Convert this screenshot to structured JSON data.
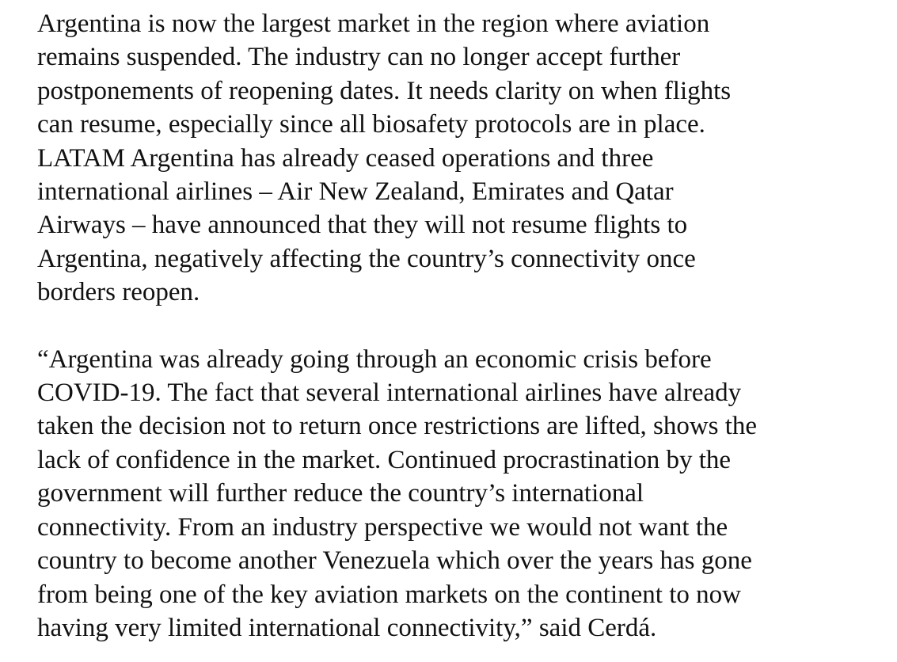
{
  "document": {
    "paragraphs": [
      {
        "lines": [
          "Argentina is now the largest market in the region where aviation",
          "remains suspended. The industry can no longer accept further",
          "postponements of reopening dates. It needs clarity on when flights",
          "can resume, especially since all biosafety protocols are in place.",
          "LATAM Argentina has already ceased operations and three",
          "international airlines – Air New Zealand, Emirates and Qatar",
          "Airways – have announced that they will not resume flights to",
          "Argentina, negatively affecting the country’s connectivity once",
          "borders reopen."
        ]
      },
      {
        "lines": [
          "“Argentina was already going through an economic crisis before",
          "COVID-19. The fact that several international airlines have already",
          "taken the decision not to return once restrictions are lifted, shows the",
          "lack of confidence in the market. Continued procrastination by the",
          "government will further reduce the country’s international",
          "connectivity. From an industry perspective we would not want the",
          "country to become another Venezuela which over the years has gone",
          "from being one of the key aviation markets on the continent to now",
          "having very limited international connectivity,” said Cerdá."
        ]
      }
    ]
  }
}
